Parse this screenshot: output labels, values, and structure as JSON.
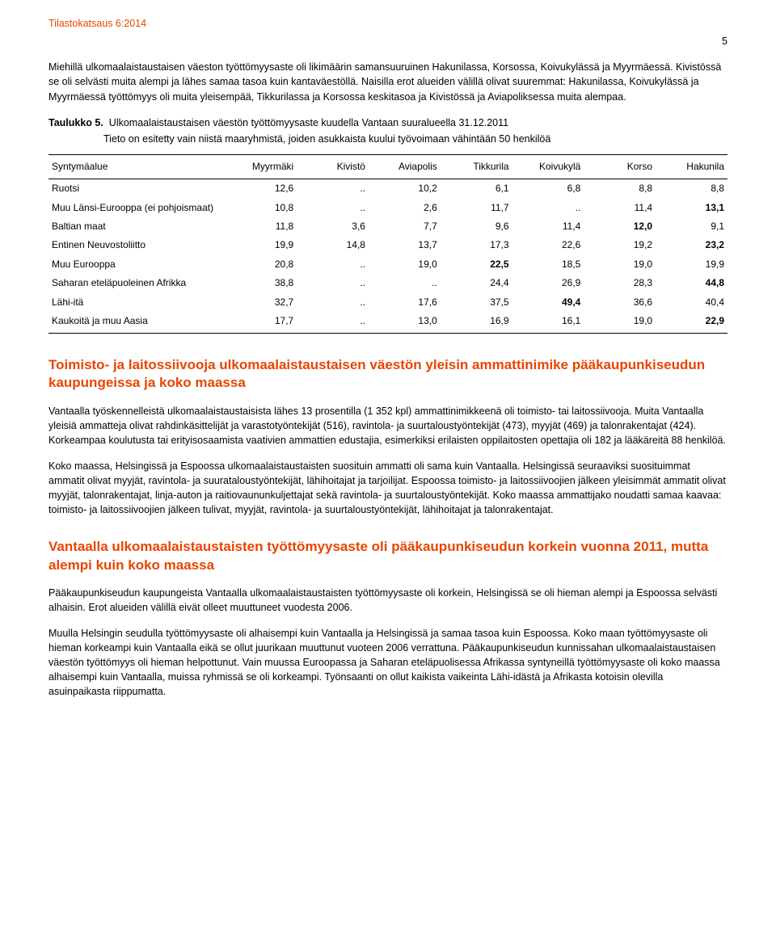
{
  "header": {
    "title": "Tilastokatsaus 6:2014",
    "page_number": "5"
  },
  "intro": {
    "p1": "Miehillä ulkomaalaistaustaisen väeston työttömyysaste oli likimäärin samansuuruinen Hakunilassa, Korsossa, Koivukylässä ja Myyrmäessä. Kivistössä se oli selvästi muita alempi ja lähes samaa tasoa kuin kantaväestöllä. Naisilla erot alueiden välillä olivat suuremmat: Hakunilassa, Koivukylässä ja Myyrmäessä työttömyys oli muita yleisempää, Tikkurilassa ja Korsossa keskitasoa ja Kivistössä ja Aviapoliksessa muita alempaa."
  },
  "table5": {
    "label": "Taulukko 5.",
    "caption": "Ulkomaalaistaustaisen väestön työttömyysaste kuudella Vantaan suuralueella 31.12.2011",
    "note": "Tieto on esitetty vain niistä maaryhmistä, joiden asukkaista kuului työvoimaan vähintään 50 henkilöä",
    "columns": [
      "Syntymäalue",
      "Myyrmäki",
      "Kivistö",
      "Aviapolis",
      "Tikkurila",
      "Koivukylä",
      "Korso",
      "Hakunila"
    ],
    "rows": [
      {
        "origin": "Ruotsi",
        "c": [
          "12,6",
          "..",
          "10,2",
          "6,1",
          "6,8",
          "8,8",
          "8,8"
        ],
        "bold": [
          0,
          0,
          0,
          0,
          0,
          0,
          0
        ]
      },
      {
        "origin": "Muu Länsi-Eurooppa (ei pohjoismaat)",
        "c": [
          "10,8",
          "..",
          "2,6",
          "11,7",
          "..",
          "11,4",
          "13,1"
        ],
        "bold": [
          0,
          0,
          0,
          0,
          0,
          0,
          1
        ]
      },
      {
        "origin": "Baltian maat",
        "c": [
          "11,8",
          "3,6",
          "7,7",
          "9,6",
          "11,4",
          "12,0",
          "9,1"
        ],
        "bold": [
          0,
          0,
          0,
          0,
          0,
          1,
          0
        ]
      },
      {
        "origin": "Entinen Neuvostoliitto",
        "c": [
          "19,9",
          "14,8",
          "13,7",
          "17,3",
          "22,6",
          "19,2",
          "23,2"
        ],
        "bold": [
          0,
          0,
          0,
          0,
          0,
          0,
          1
        ]
      },
      {
        "origin": "Muu Eurooppa",
        "c": [
          "20,8",
          "..",
          "19,0",
          "22,5",
          "18,5",
          "19,0",
          "19,9"
        ],
        "bold": [
          0,
          0,
          0,
          1,
          0,
          0,
          0
        ]
      },
      {
        "origin": "Saharan eteläpuoleinen Afrikka",
        "c": [
          "38,8",
          "..",
          "..",
          "24,4",
          "26,9",
          "28,3",
          "44,8"
        ],
        "bold": [
          0,
          0,
          0,
          0,
          0,
          0,
          1
        ]
      },
      {
        "origin": "Lähi-itä",
        "c": [
          "32,7",
          "..",
          "17,6",
          "37,5",
          "49,4",
          "36,6",
          "40,4"
        ],
        "bold": [
          0,
          0,
          0,
          0,
          1,
          0,
          0
        ]
      },
      {
        "origin": "Kaukoitä ja muu Aasia",
        "c": [
          "17,7",
          "..",
          "13,0",
          "16,9",
          "16,1",
          "19,0",
          "22,9"
        ],
        "bold": [
          0,
          0,
          0,
          0,
          0,
          0,
          1
        ]
      }
    ]
  },
  "section1": {
    "heading": "Toimisto- ja laitossiivooja ulkomaalaistaustaisen väestön yleisin ammattinimike pääkaupunkiseudun kaupungeissa ja koko maassa",
    "p1": "Vantaalla työskennelleistä ulkomaalaistaustaisista lähes 13 prosentilla (1 352 kpl) ammattinimikkeenä oli toimisto- tai laitossiivooja. Muita Vantaalla yleisiä ammatteja olivat rahdinkäsittelijät ja varastotyöntekijät (516), ravintola- ja suurtaloustyöntekijät (473), myyjät (469) ja talonrakentajat (424). Korkeampaa koulutusta tai erityisosaamista vaativien ammattien edustajia, esimerkiksi erilaisten oppilaitosten opettajia oli 182 ja lääkäreitä 88 henkilöä.",
    "p2": "Koko maassa, Helsingissä ja Espoossa ulkomaalaistaustaisten suosituin ammatti oli sama kuin Vantaalla. Helsingissä seuraaviksi suosituimmat ammatit olivat myyjät, ravintola- ja suurataloustyöntekijät, lähihoitajat ja tarjoilijat. Espoossa toimisto- ja laitossiivoojien jälkeen yleisimmät ammatit olivat myyjät, talonrakentajat, linja-auton ja raitiovaununkuljettajat sekä ravintola- ja suurtaloustyöntekijät. Koko maassa ammattijako noudatti samaa kaavaa: toimisto- ja laitossiivoojien jälkeen tulivat, myyjät, ravintola- ja suurtaloustyöntekijät, lähihoitajat ja talonrakentajat."
  },
  "section2": {
    "heading": "Vantaalla ulkomaalaistaustaisten työttömyysaste oli pääkaupunkiseudun korkein vuonna 2011, mutta alempi kuin koko maassa",
    "p1": "Pääkaupunkiseudun kaupungeista Vantaalla ulkomaalaistaustaisten työttömyysaste oli korkein, Helsingissä se oli hieman alempi ja Espoossa selvästi alhaisin. Erot alueiden välillä eivät olleet muuttuneet vuodesta 2006.",
    "p2": "Muulla Helsingin seudulla työttömyysaste oli alhaisempi kuin Vantaalla ja Helsingissä ja samaa tasoa kuin Espoossa. Koko maan työttömyysaste oli hieman korkeampi kuin Vantaalla eikä se ollut juurikaan muuttunut vuoteen 2006 verrattuna. Pääkaupunkiseudun kunnissahan ulkomaalaistaustaisen väestön työttömyys oli hieman helpottunut. Vain muussa Euroopassa ja Saharan eteläpuolisessa Afrikassa syntyneillä työttömyysaste oli koko maassa alhaisempi kuin Vantaalla, muissa ryhmissä se oli korkeampi. Työnsaanti on ollut kaikista vaikeinta Lähi-idästä ja Afrikasta kotoisin olevilla asuinpaikasta riippumatta."
  }
}
